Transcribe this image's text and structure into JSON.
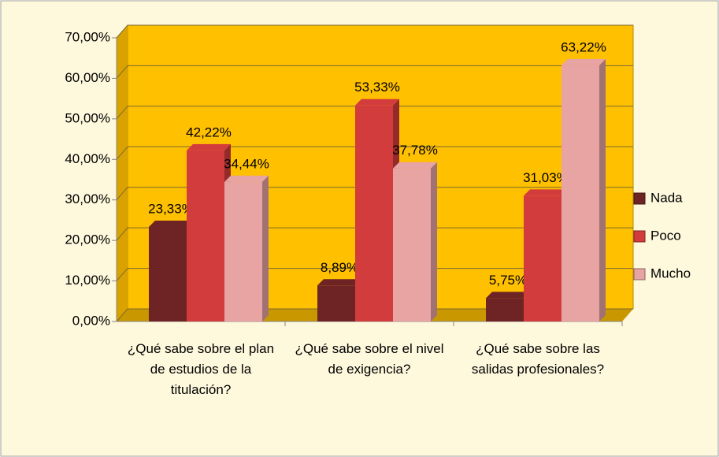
{
  "chart_data": {
    "type": "bar",
    "categories": [
      "¿Qué sabe sobre el plan de estudios de la titulación?",
      "¿Qué sabe sobre el nivel de exigencia?",
      "¿Qué sabe sobre las salidas profesionales?"
    ],
    "series": [
      {
        "name": "Nada",
        "color": "#6e2424",
        "values": [
          23.33,
          8.89,
          5.75
        ],
        "value_labels": [
          "23,33%",
          "8,89%",
          "5,75%"
        ]
      },
      {
        "name": "Poco",
        "color": "#d33c3c",
        "values": [
          42.22,
          53.33,
          31.03
        ],
        "value_labels": [
          "42,22%",
          "53,33%",
          "31,03%"
        ]
      },
      {
        "name": "Mucho",
        "color": "#e8a3a3",
        "values": [
          34.44,
          37.78,
          63.22
        ],
        "value_labels": [
          "34,44%",
          "37,78%",
          "63,22%"
        ]
      }
    ],
    "ylim": [
      0,
      70
    ],
    "yticks": [
      {
        "value": 0,
        "label": "0,00%"
      },
      {
        "value": 10,
        "label": "10,00%"
      },
      {
        "value": 20,
        "label": "20,00%"
      },
      {
        "value": 30,
        "label": "30,00%"
      },
      {
        "value": 40,
        "label": "40,00%"
      },
      {
        "value": 50,
        "label": "50,00%"
      },
      {
        "value": 60,
        "label": "60,00%"
      },
      {
        "value": 70,
        "label": "70,00%"
      }
    ],
    "grid": true,
    "legend": "right"
  }
}
